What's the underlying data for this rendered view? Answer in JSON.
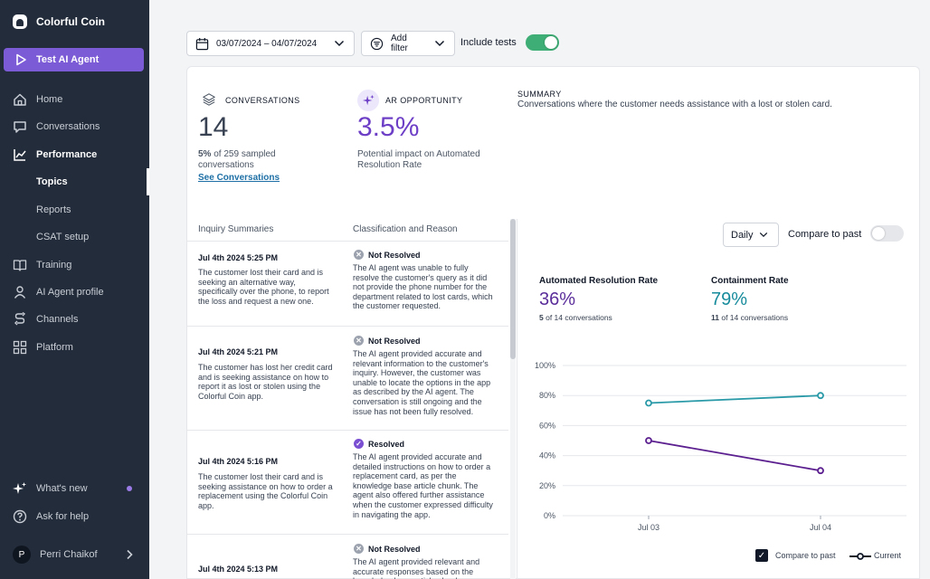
{
  "brand": {
    "name": "Colorful Coin"
  },
  "sidebar": {
    "test_button": "Test AI Agent",
    "items": [
      {
        "label": "Home",
        "icon": "home-icon"
      },
      {
        "label": "Conversations",
        "icon": "chat-icon"
      },
      {
        "label": "Performance",
        "icon": "chart-line-icon"
      },
      {
        "label": "Topics"
      },
      {
        "label": "Reports"
      },
      {
        "label": "CSAT setup"
      },
      {
        "label": "Training",
        "icon": "book-icon"
      },
      {
        "label": "AI Agent profile",
        "icon": "user-icon"
      },
      {
        "label": "Channels",
        "icon": "channels-icon"
      },
      {
        "label": "Platform",
        "icon": "grid-icon"
      }
    ],
    "whats_new": "What's new",
    "help": "Ask for help",
    "user": {
      "initial": "P",
      "name": "Perri Chaikof"
    }
  },
  "toolbar": {
    "date_range": "03/07/2024 – 04/07/2024",
    "add_filter": "Add filter",
    "include_tests": "Include tests",
    "include_tests_on": true
  },
  "stats": {
    "conversations": {
      "label": "CONVERSATIONS",
      "value": "14",
      "pct": "5%",
      "desc": " of 259 sampled conversations",
      "link": "See Conversations"
    },
    "ar_opportunity": {
      "label": "AR OPPORTUNITY",
      "value": "3.5%",
      "desc": "Potential impact on Automated Resolution Rate"
    },
    "summary": {
      "label": "SUMMARY",
      "text": "Conversations where the customer needs assistance with a lost or stolen card."
    }
  },
  "table": {
    "headers": [
      "Inquiry Summaries",
      "Classification and Reason"
    ],
    "rows": [
      {
        "date": "Jul 4th 2024 5:25 PM",
        "summary": "The customer lost their card and is seeking an alternative way, specifically over the phone, to report the loss and request a new one.",
        "status": "Not Resolved",
        "resolved": false,
        "reason": "The AI agent was unable to fully resolve the customer's query as it did not provide the phone number for the department related to lost cards, which the customer requested."
      },
      {
        "date": "Jul 4th 2024 5:21 PM",
        "summary": "The customer has lost her credit card and is seeking assistance on how to report it as lost or stolen using the Colorful Coin app.",
        "status": "Not Resolved",
        "resolved": false,
        "reason": "The AI agent provided accurate and relevant information to the customer's inquiry. However, the customer was unable to locate the options in the app as described by the AI agent. The conversation is still ongoing and the issue has not been fully resolved."
      },
      {
        "date": "Jul 4th 2024 5:16 PM",
        "summary": "The customer lost their card and is seeking assistance on how to order a replacement using the Colorful Coin app.",
        "status": "Resolved",
        "resolved": true,
        "reason": "The AI agent provided accurate and detailed instructions on how to order a replacement card, as per the knowledge base article chunk. The agent also offered further assistance when the customer expressed difficulty in navigating the app."
      },
      {
        "date": "Jul 4th 2024 5:13 PM",
        "summary": "",
        "status": "Not Resolved",
        "resolved": false,
        "reason": "The AI agent provided relevant and accurate responses based on the knowledge base article chunks."
      }
    ]
  },
  "panel": {
    "granularity": "Daily",
    "compare_label": "Compare to past",
    "compare_on": false,
    "metrics": [
      {
        "title": "Automated Resolution Rate",
        "value": "36%",
        "count": "5",
        "of": " of 14 conversations",
        "color": "#5a2d9a"
      },
      {
        "title": "Containment Rate",
        "value": "79%",
        "count": "11",
        "of": " of 14 conversations",
        "color": "#168b9c"
      }
    ],
    "legend": {
      "compare": "Compare to past",
      "current": "Current"
    }
  },
  "chart_data": {
    "type": "line",
    "x": [
      "Jul 03",
      "Jul 04"
    ],
    "yticks": [
      "100%",
      "80%",
      "60%",
      "40%",
      "20%",
      "0%"
    ],
    "ylim": [
      0,
      100
    ],
    "series": [
      {
        "name": "Containment Rate",
        "values": [
          75,
          80
        ],
        "color": "#2a9aa8"
      },
      {
        "name": "Automated Resolution Rate",
        "values": [
          50,
          30
        ],
        "color": "#5b1f8f"
      }
    ]
  }
}
